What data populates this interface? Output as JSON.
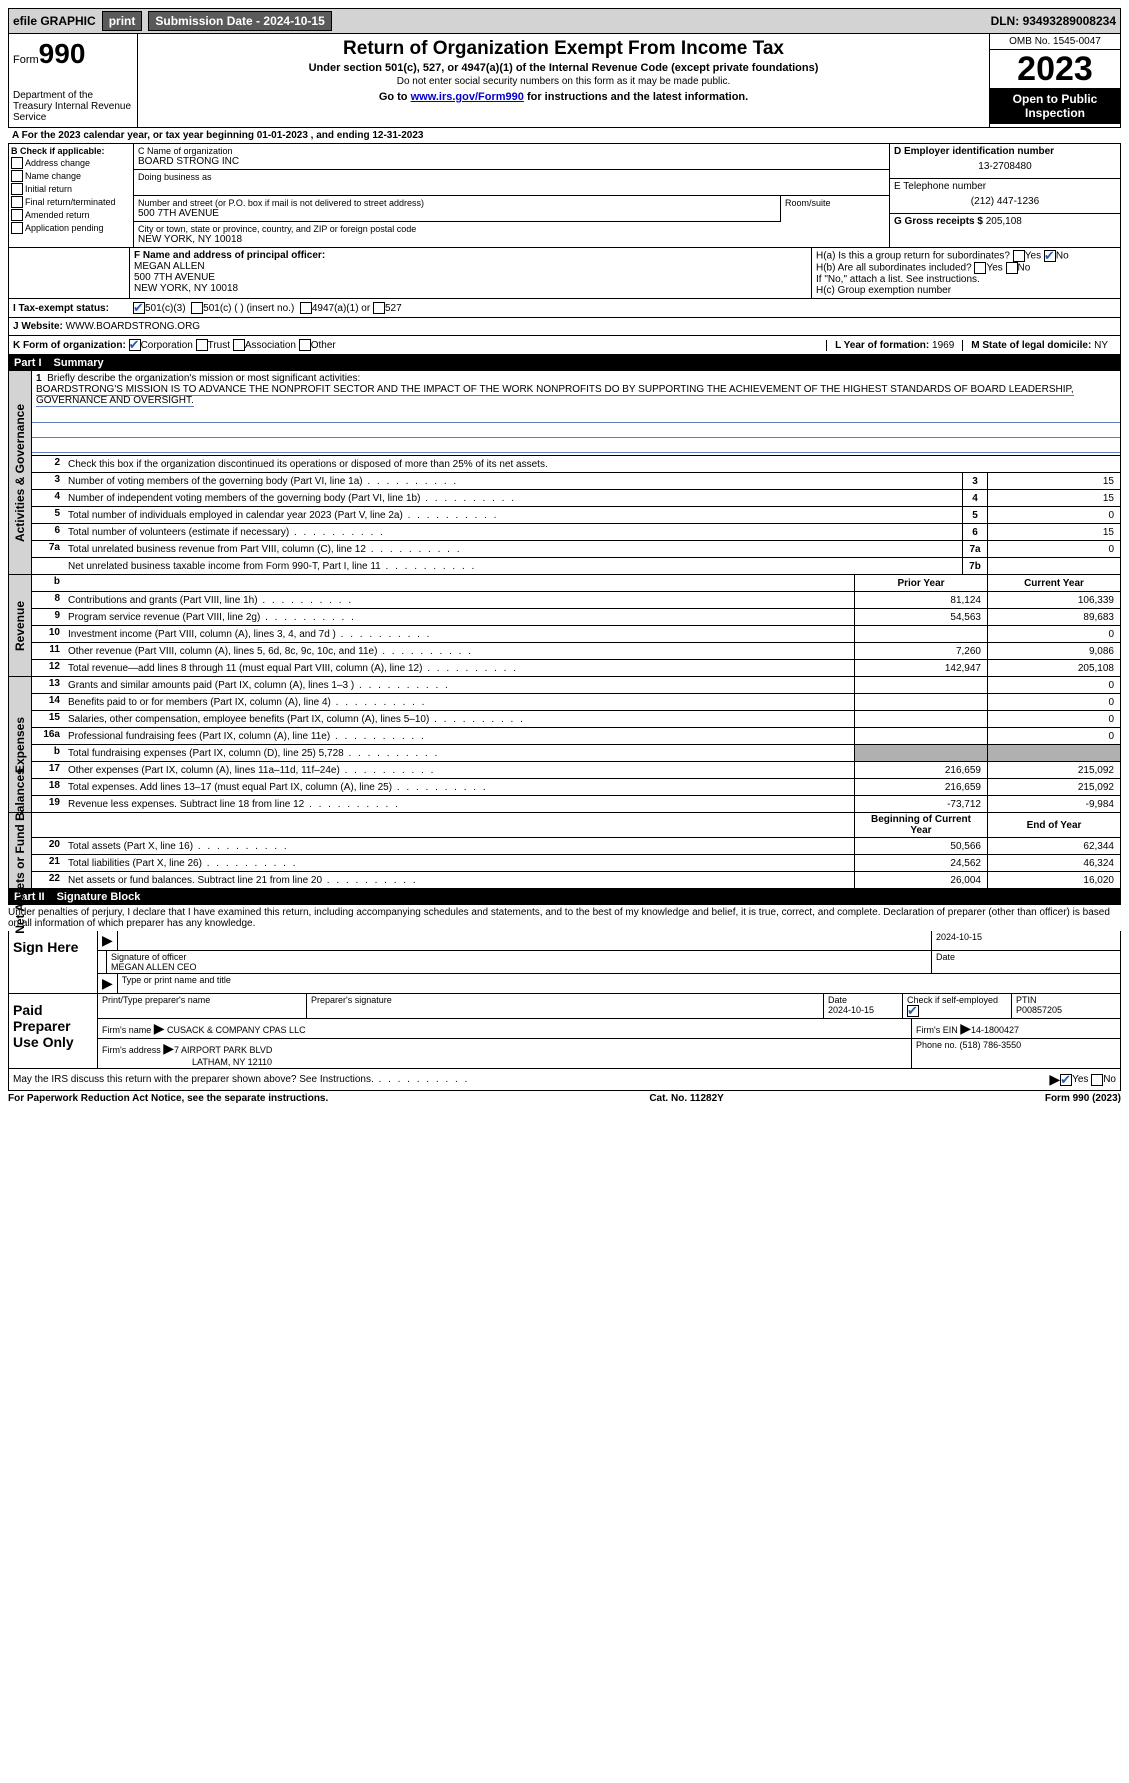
{
  "topbar": {
    "efile": "efile GRAPHIC",
    "print": "print",
    "sub_label": "Submission Date - ",
    "sub_date": "2024-10-15",
    "dln_label": "DLN: ",
    "dln": "93493289008234"
  },
  "header": {
    "form_prefix": "Form",
    "form_no": "990",
    "dept": "Department of the Treasury Internal Revenue Service",
    "title": "Return of Organization Exempt From Income Tax",
    "subtitle": "Under section 501(c), 527, or 4947(a)(1) of the Internal Revenue Code (except private foundations)",
    "note": "Do not enter social security numbers on this form as it may be made public.",
    "goto_pre": "Go to ",
    "goto_link": "www.irs.gov/Form990",
    "goto_post": " for instructions and the latest information.",
    "omb": "OMB No. 1545-0047",
    "year": "2023",
    "inspection": "Open to Public Inspection"
  },
  "a_line": "For the 2023 calendar year, or tax year beginning 01-01-2023   , and ending 12-31-2023",
  "b": {
    "title": "B Check if applicable:",
    "items": [
      "Address change",
      "Name change",
      "Initial return",
      "Final return/terminated",
      "Amended return",
      "Application pending"
    ]
  },
  "c": {
    "name_label": "C Name of organization",
    "name": "BOARD STRONG INC",
    "dba_label": "Doing business as",
    "street_label": "Number and street (or P.O. box if mail is not delivered to street address)",
    "street": "500 7TH AVENUE",
    "room_label": "Room/suite",
    "city_label": "City or town, state or province, country, and ZIP or foreign postal code",
    "city": "NEW YORK, NY  10018"
  },
  "d": {
    "label": "D Employer identification number",
    "value": "13-2708480"
  },
  "e": {
    "label": "E Telephone number",
    "value": "(212) 447-1236"
  },
  "g": {
    "label": "G Gross receipts $ ",
    "value": "205,108"
  },
  "f": {
    "label": "F  Name and address of principal officer:",
    "name": "MEGAN ALLEN",
    "street": "500 7TH AVENUE",
    "city": "NEW YORK, NY  10018"
  },
  "h": {
    "a": "H(a)  Is this a group return for subordinates?",
    "b": "H(b)  Are all subordinates included?",
    "b_note": "If \"No,\" attach a list. See instructions.",
    "c": "H(c)  Group exemption number  ",
    "yes": "Yes",
    "no": "No"
  },
  "i": {
    "label": "I   Tax-exempt status:",
    "opts": [
      "501(c)(3)",
      "501(c) (  ) (insert no.)",
      "4947(a)(1) or",
      "527"
    ]
  },
  "j": {
    "label": "J   Website: ",
    "url": "WWW.BOARDSTRONG.ORG"
  },
  "k": {
    "label": "K Form of organization:",
    "opts": [
      "Corporation",
      "Trust",
      "Association",
      "Other"
    ]
  },
  "l": {
    "label": "L Year of formation: ",
    "value": "1969"
  },
  "m": {
    "label": "M State of legal domicile: ",
    "value": "NY"
  },
  "parts": {
    "p1": "Part I",
    "p1_title": "Summary",
    "p2": "Part II",
    "p2_title": "Signature Block"
  },
  "sides": {
    "gov": "Activities & Governance",
    "rev": "Revenue",
    "exp": "Expenses",
    "net": "Net Assets or Fund Balances"
  },
  "summary": {
    "l1_label": "Briefly describe the organization's mission or most significant activities:",
    "mission": "BOARDSTRONG'S MISSION IS TO ADVANCE THE NONPROFIT SECTOR AND THE IMPACT OF THE WORK NONPROFITS DO BY SUPPORTING THE ACHIEVEMENT OF THE HIGHEST STANDARDS OF BOARD LEADERSHIP, GOVERNANCE AND OVERSIGHT.",
    "l2": "Check this box       if the organization discontinued its operations or disposed of more than 25% of its net assets.",
    "rows_single": [
      {
        "n": "3",
        "t": "Number of voting members of the governing body (Part VI, line 1a)",
        "box": "3",
        "v": "15"
      },
      {
        "n": "4",
        "t": "Number of independent voting members of the governing body (Part VI, line 1b)",
        "box": "4",
        "v": "15"
      },
      {
        "n": "5",
        "t": "Total number of individuals employed in calendar year 2023 (Part V, line 2a)",
        "box": "5",
        "v": "0"
      },
      {
        "n": "6",
        "t": "Total number of volunteers (estimate if necessary)",
        "box": "6",
        "v": "15"
      },
      {
        "n": "7a",
        "t": "Total unrelated business revenue from Part VIII, column (C), line 12",
        "box": "7a",
        "v": "0"
      },
      {
        "n": "",
        "t": "Net unrelated business taxable income from Form 990-T, Part I, line 11",
        "box": "7b",
        "v": ""
      }
    ],
    "col_headers": {
      "prior": "Prior Year",
      "current": "Current Year",
      "begin": "Beginning of Current Year",
      "end": "End of Year"
    },
    "rev_rows": [
      {
        "n": "8",
        "t": "Contributions and grants (Part VIII, line 1h)",
        "p": "81,124",
        "c": "106,339"
      },
      {
        "n": "9",
        "t": "Program service revenue (Part VIII, line 2g)",
        "p": "54,563",
        "c": "89,683"
      },
      {
        "n": "10",
        "t": "Investment income (Part VIII, column (A), lines 3, 4, and 7d )",
        "p": "",
        "c": "0"
      },
      {
        "n": "11",
        "t": "Other revenue (Part VIII, column (A), lines 5, 6d, 8c, 9c, 10c, and 11e)",
        "p": "7,260",
        "c": "9,086"
      },
      {
        "n": "12",
        "t": "Total revenue—add lines 8 through 11 (must equal Part VIII, column (A), line 12)",
        "p": "142,947",
        "c": "205,108"
      }
    ],
    "exp_rows": [
      {
        "n": "13",
        "t": "Grants and similar amounts paid (Part IX, column (A), lines 1–3 )",
        "p": "",
        "c": "0"
      },
      {
        "n": "14",
        "t": "Benefits paid to or for members (Part IX, column (A), line 4)",
        "p": "",
        "c": "0"
      },
      {
        "n": "15",
        "t": "Salaries, other compensation, employee benefits (Part IX, column (A), lines 5–10)",
        "p": "",
        "c": "0"
      },
      {
        "n": "16a",
        "t": "Professional fundraising fees (Part IX, column (A), line 11e)",
        "p": "",
        "c": "0"
      },
      {
        "n": "b",
        "t": "Total fundraising expenses (Part IX, column (D), line 25) 5,728",
        "p": "SHADE",
        "c": "SHADE"
      },
      {
        "n": "17",
        "t": "Other expenses (Part IX, column (A), lines 11a–11d, 11f–24e)",
        "p": "216,659",
        "c": "215,092"
      },
      {
        "n": "18",
        "t": "Total expenses. Add lines 13–17 (must equal Part IX, column (A), line 25)",
        "p": "216,659",
        "c": "215,092"
      },
      {
        "n": "19",
        "t": "Revenue less expenses. Subtract line 18 from line 12",
        "p": "-73,712",
        "c": "-9,984"
      }
    ],
    "net_rows": [
      {
        "n": "20",
        "t": "Total assets (Part X, line 16)",
        "p": "50,566",
        "c": "62,344"
      },
      {
        "n": "21",
        "t": "Total liabilities (Part X, line 26)",
        "p": "24,562",
        "c": "46,324"
      },
      {
        "n": "22",
        "t": "Net assets or fund balances. Subtract line 21 from line 20",
        "p": "26,004",
        "c": "16,020"
      }
    ]
  },
  "perjury": "Under penalties of perjury, I declare that I have examined this return, including accompanying schedules and statements, and to the best of my knowledge and belief, it is true, correct, and complete. Declaration of preparer (other than officer) is based on all information of which preparer has any knowledge.",
  "sign": {
    "here": "Sign Here",
    "date_top": "2024-10-15",
    "sig_officer": "Signature of officer",
    "officer": "MEGAN ALLEN  CEO",
    "type_name": "Type or print name and title",
    "date": "Date"
  },
  "paid": {
    "title": "Paid Preparer Use Only",
    "print_label": "Print/Type preparer's name",
    "sig_label": "Preparer's signature",
    "date_label": "Date",
    "date": "2024-10-15",
    "check_label": "Check         if self-employed",
    "ptin_label": "PTIN",
    "ptin": "P00857205",
    "firm_name_label": "Firm's name    ",
    "firm_name": "CUSACK & COMPANY CPAS LLC",
    "firm_ein_label": "Firm's EIN  ",
    "firm_ein": "14-1800427",
    "firm_addr_label": "Firm's address ",
    "firm_addr1": "7 AIRPORT PARK BLVD",
    "firm_addr2": "LATHAM, NY  12110",
    "phone_label": "Phone no. ",
    "phone": "(518) 786-3550"
  },
  "discuss": "May the IRS discuss this return with the preparer shown above? See Instructions.",
  "footer": {
    "left": "For Paperwork Reduction Act Notice, see the separate instructions.",
    "mid": "Cat. No. 11282Y",
    "right": "Form 990 (2023)"
  }
}
